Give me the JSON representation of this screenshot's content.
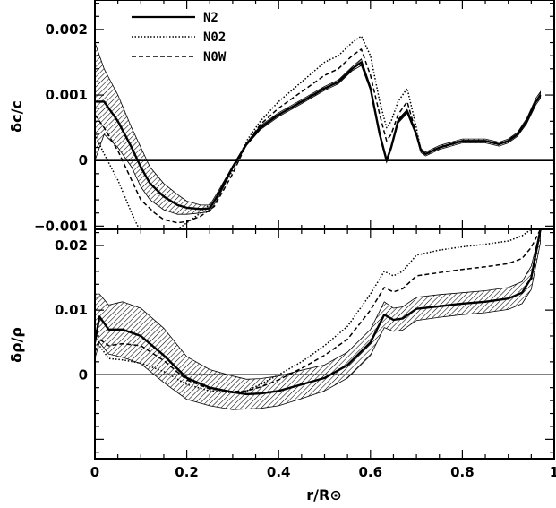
{
  "chart_data": {
    "type": "line",
    "xlabel": "r/R⊙",
    "x_ticks": [
      "0",
      "0.2",
      "0.4",
      "0.6",
      "0.8",
      "1"
    ],
    "panels": [
      {
        "ylabel": "δc/c",
        "xlim": [
          0,
          1
        ],
        "ylim": [
          -0.00105,
          0.00245
        ],
        "y_ticks": [
          {
            "value": 0.002,
            "label": "0.002"
          },
          {
            "value": 0.001,
            "label": "0.001"
          },
          {
            "value": 0,
            "label": "0"
          },
          {
            "value": -0.001,
            "label": "−0.001"
          }
        ],
        "zero_line": true,
        "legend": {
          "location": "top-left",
          "entries": [
            {
              "label": "N2",
              "dash": "solid"
            },
            {
              "label": "N02",
              "dash": "dotted"
            },
            {
              "label": "N0W",
              "dash": "dashed"
            }
          ]
        },
        "series": [
          {
            "name": "N2",
            "dash": "solid",
            "x": [
              0,
              0.02,
              0.05,
              0.08,
              0.1,
              0.12,
              0.15,
              0.18,
              0.2,
              0.23,
              0.25,
              0.27,
              0.3,
              0.33,
              0.36,
              0.4,
              0.45,
              0.5,
              0.53,
              0.56,
              0.58,
              0.6,
              0.62,
              0.635,
              0.645,
              0.66,
              0.68,
              0.7,
              0.71,
              0.72,
              0.75,
              0.8,
              0.85,
              0.88,
              0.9,
              0.92,
              0.94,
              0.96,
              0.97
            ],
            "y": [
              0.0009,
              0.0009,
              0.0006,
              0.0002,
              -0.0001,
              -0.00035,
              -0.00055,
              -0.00068,
              -0.00072,
              -0.00074,
              -0.00073,
              -0.0005,
              -0.0001,
              0.00025,
              0.0005,
              0.0007,
              0.0009,
              0.0011,
              0.0012,
              0.0014,
              0.0015,
              0.0011,
              0.0004,
              0.0,
              0.0002,
              0.0006,
              0.00075,
              0.0004,
              0.00015,
              0.0001,
              0.0002,
              0.0003,
              0.0003,
              0.00025,
              0.0003,
              0.0004,
              0.0006,
              0.0009,
              0.001
            ],
            "band_lower": [
              0.0,
              0.0004,
              0.0002,
              -0.0001,
              -0.0004,
              -0.0006,
              -0.00075,
              -0.00082,
              -0.00082,
              -0.0008,
              -0.00078,
              -0.00055,
              -0.00012,
              0.00023,
              0.00047,
              0.00067,
              0.00087,
              0.00107,
              0.00117,
              0.00137,
              0.00145,
              0.00107,
              0.00037,
              -3e-05,
              0.00017,
              0.00057,
              0.00072,
              0.00037,
              0.00012,
              7e-05,
              0.00017,
              0.00027,
              0.00027,
              0.00022,
              0.00027,
              0.00037,
              0.00056,
              0.00085,
              0.00095
            ],
            "band_upper": [
              0.0018,
              0.0014,
              0.001,
              0.0005,
              0.0002,
              -0.0001,
              -0.00035,
              -0.00052,
              -0.00062,
              -0.00068,
              -0.00068,
              -0.00045,
              -8e-05,
              0.00027,
              0.00053,
              0.00073,
              0.00093,
              0.00113,
              0.00123,
              0.00143,
              0.00155,
              0.00113,
              0.00043,
              3e-05,
              0.00023,
              0.00063,
              0.00078,
              0.00043,
              0.00018,
              0.00013,
              0.00023,
              0.00033,
              0.00033,
              0.00028,
              0.00033,
              0.00043,
              0.00064,
              0.00095,
              0.00105
            ]
          },
          {
            "name": "N02",
            "dash": "dotted",
            "x": [
              0,
              0.02,
              0.05,
              0.08,
              0.1,
              0.13,
              0.15,
              0.18,
              0.2,
              0.23,
              0.26,
              0.3,
              0.33,
              0.36,
              0.4,
              0.45,
              0.5,
              0.53,
              0.56,
              0.58,
              0.6,
              0.62,
              0.635,
              0.645,
              0.66,
              0.68,
              0.7,
              0.71
            ],
            "y": [
              0.0004,
              0.0001,
              -0.0003,
              -0.0008,
              -0.0011,
              -0.00128,
              -0.0012,
              -0.00105,
              -0.00095,
              -0.0008,
              -0.0006,
              -0.00015,
              0.0003,
              0.0006,
              0.0009,
              0.0012,
              0.0015,
              0.0016,
              0.0018,
              0.0019,
              0.0016,
              0.0009,
              0.0005,
              0.0006,
              0.0009,
              0.0011,
              0.0005,
              0.00015
            ]
          },
          {
            "name": "N0W",
            "dash": "dashed",
            "x": [
              0,
              0.02,
              0.05,
              0.08,
              0.1,
              0.13,
              0.15,
              0.18,
              0.2,
              0.23,
              0.26,
              0.3,
              0.33,
              0.36,
              0.4,
              0.45,
              0.5,
              0.53,
              0.56,
              0.58,
              0.6,
              0.62,
              0.635,
              0.645,
              0.66,
              0.68,
              0.7,
              0.71
            ],
            "y": [
              0.0007,
              0.0005,
              0.00015,
              -0.0003,
              -0.0006,
              -0.0008,
              -0.0009,
              -0.00095,
              -0.00093,
              -0.00085,
              -0.0007,
              -0.0002,
              0.00025,
              0.00055,
              0.0008,
              0.00105,
              0.0013,
              0.0014,
              0.0016,
              0.0017,
              0.0013,
              0.0007,
              0.0003,
              0.0004,
              0.0007,
              0.0009,
              0.0004,
              0.00015
            ]
          }
        ]
      },
      {
        "ylabel": "δρ/ρ",
        "xlim": [
          0,
          1
        ],
        "ylim": [
          -0.013,
          0.0225
        ],
        "y_ticks": [
          {
            "value": 0.02,
            "label": "0.02"
          },
          {
            "value": 0.01,
            "label": "0.01"
          },
          {
            "value": 0,
            "label": "0"
          }
        ],
        "zero_line": true,
        "series": [
          {
            "name": "N2",
            "dash": "solid",
            "x": [
              0,
              0.01,
              0.03,
              0.06,
              0.1,
              0.15,
              0.2,
              0.25,
              0.3,
              0.33,
              0.36,
              0.4,
              0.45,
              0.5,
              0.55,
              0.6,
              0.63,
              0.65,
              0.67,
              0.7,
              0.75,
              0.8,
              0.85,
              0.9,
              0.93,
              0.95,
              0.97
            ],
            "y": [
              0.005,
              0.009,
              0.007,
              0.007,
              0.006,
              0.003,
              -0.0005,
              -0.002,
              -0.0027,
              -0.003,
              -0.0029,
              -0.0025,
              -0.0015,
              -0.0005,
              0.0015,
              0.005,
              0.0093,
              0.0085,
              0.0087,
              0.0102,
              0.0106,
              0.011,
              0.0113,
              0.0118,
              0.0127,
              0.015,
              0.0225
            ],
            "band_lower": [
              0.0025,
              0.005,
              0.0032,
              0.0027,
              0.0017,
              -0.0012,
              -0.0038,
              -0.0048,
              -0.0054,
              -0.0053,
              -0.0052,
              -0.0048,
              -0.0037,
              -0.0025,
              -0.0005,
              0.003,
              0.0073,
              0.0067,
              0.0069,
              0.0084,
              0.0089,
              0.0093,
              0.0096,
              0.0101,
              0.011,
              0.0132,
              0.0205
            ],
            "band_upper": [
              0.0125,
              0.0125,
              0.0108,
              0.0113,
              0.0103,
              0.0072,
              0.0028,
              0.0008,
              -0.0002,
              -0.0007,
              -0.0006,
              -0.0002,
              0.0007,
              0.0015,
              0.0035,
              0.007,
              0.0113,
              0.0103,
              0.0105,
              0.012,
              0.0124,
              0.0127,
              0.013,
              0.0135,
              0.0144,
              0.0168,
              0.0225
            ]
          },
          {
            "name": "N02",
            "dash": "dotted",
            "x": [
              0,
              0.01,
              0.03,
              0.06,
              0.1,
              0.15,
              0.2,
              0.25,
              0.3,
              0.33,
              0.36,
              0.4,
              0.45,
              0.5,
              0.55,
              0.6,
              0.63,
              0.65,
              0.67,
              0.7,
              0.75,
              0.8,
              0.85,
              0.9,
              0.93,
              0.95,
              0.97
            ],
            "y": [
              0.004,
              0.0045,
              0.0025,
              0.0023,
              0.0018,
              0.0005,
              -0.0015,
              -0.0025,
              -0.0028,
              -0.0025,
              -0.0015,
              0.0,
              0.002,
              0.0045,
              0.0075,
              0.0125,
              0.016,
              0.0153,
              0.016,
              0.0185,
              0.0193,
              0.0198,
              0.0202,
              0.0207,
              0.0215,
              0.0225,
              0.0225
            ]
          },
          {
            "name": "N0W",
            "dash": "dashed",
            "x": [
              0,
              0.01,
              0.03,
              0.06,
              0.1,
              0.15,
              0.2,
              0.25,
              0.3,
              0.33,
              0.36,
              0.4,
              0.45,
              0.5,
              0.55,
              0.6,
              0.63,
              0.65,
              0.67,
              0.7,
              0.75,
              0.8,
              0.85,
              0.9,
              0.93,
              0.95,
              0.97
            ],
            "y": [
              0.0035,
              0.0055,
              0.0045,
              0.0048,
              0.0045,
              0.0022,
              -0.0008,
              -0.0022,
              -0.0026,
              -0.0025,
              -0.0019,
              -0.0008,
              0.001,
              0.003,
              0.0055,
              0.01,
              0.0135,
              0.0128,
              0.0133,
              0.0153,
              0.0158,
              0.0163,
              0.0167,
              0.0172,
              0.018,
              0.0197,
              0.0225
            ]
          }
        ]
      }
    ]
  }
}
